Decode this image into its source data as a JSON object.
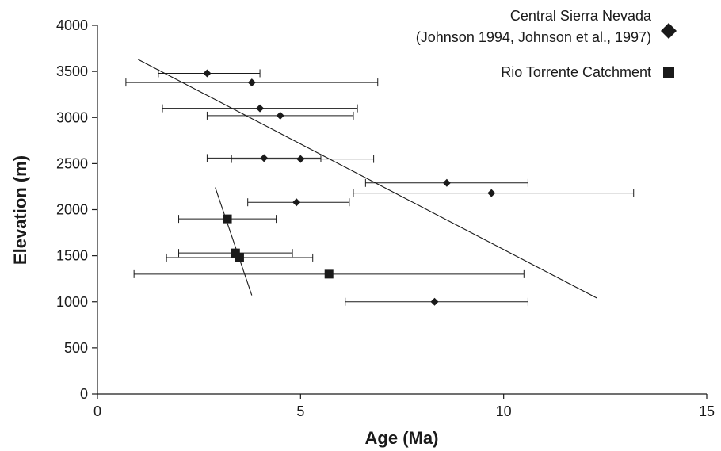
{
  "chart_data": {
    "type": "scatter",
    "xlabel": "Age (Ma)",
    "ylabel": "Elevation (m)",
    "xlim": [
      0,
      15
    ],
    "ylim": [
      0,
      4000
    ],
    "xticks": [
      0,
      5,
      10,
      15
    ],
    "yticks": [
      0,
      500,
      1000,
      1500,
      2000,
      2500,
      3000,
      3500,
      4000
    ],
    "legend_position": "top-right",
    "series": [
      {
        "name": "Central Sierra Nevada",
        "name_line2": "(Johnson 1994, Johnson et al., 1997)",
        "marker": "diamond",
        "color": "#1a1a1a",
        "points": [
          {
            "x": 2.7,
            "y": 3480,
            "xmin": 1.5,
            "xmax": 4.0
          },
          {
            "x": 3.8,
            "y": 3380,
            "xmin": 0.7,
            "xmax": 6.9
          },
          {
            "x": 4.0,
            "y": 3100,
            "xmin": 1.6,
            "xmax": 6.4
          },
          {
            "x": 4.5,
            "y": 3020,
            "xmin": 2.7,
            "xmax": 6.3
          },
          {
            "x": 4.1,
            "y": 2560,
            "xmin": 2.7,
            "xmax": 5.5
          },
          {
            "x": 5.0,
            "y": 2550,
            "xmin": 3.3,
            "xmax": 6.8
          },
          {
            "x": 8.6,
            "y": 2290,
            "xmin": 6.6,
            "xmax": 10.6
          },
          {
            "x": 9.7,
            "y": 2180,
            "xmin": 6.3,
            "xmax": 13.2
          },
          {
            "x": 4.9,
            "y": 2080,
            "xmin": 3.7,
            "xmax": 6.2
          },
          {
            "x": 8.3,
            "y": 1000,
            "xmin": 6.1,
            "xmax": 10.6
          }
        ],
        "trendline": [
          [
            1.0,
            3630
          ],
          [
            12.3,
            1040
          ]
        ]
      },
      {
        "name": "Rio Torrente Catchment",
        "marker": "square",
        "color": "#1a1a1a",
        "points": [
          {
            "x": 3.2,
            "y": 1900,
            "xmin": 2.0,
            "xmax": 4.4
          },
          {
            "x": 3.4,
            "y": 1530,
            "xmin": 2.0,
            "xmax": 4.8
          },
          {
            "x": 3.5,
            "y": 1480,
            "xmin": 1.7,
            "xmax": 5.3
          },
          {
            "x": 5.7,
            "y": 1300,
            "xmin": 0.9,
            "xmax": 10.5
          }
        ],
        "trendline": [
          [
            2.9,
            2240
          ],
          [
            3.8,
            1070
          ]
        ]
      }
    ]
  }
}
